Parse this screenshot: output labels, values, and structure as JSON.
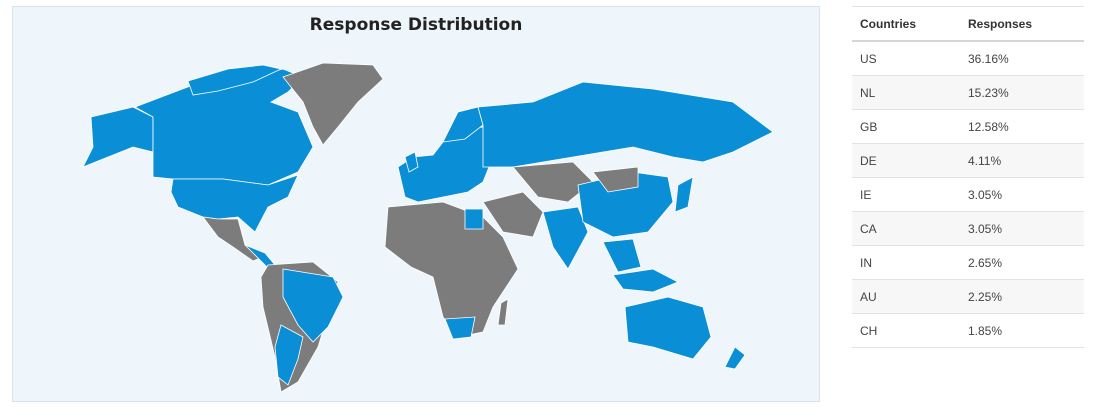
{
  "map": {
    "title": "Response Distribution",
    "colors": {
      "responding": "#0a8fd6",
      "no_responses": "#7c7c7c",
      "background": "#eef6fb"
    }
  },
  "table": {
    "headers": {
      "country": "Countries",
      "responses": "Responses"
    },
    "rows": [
      {
        "country": "US",
        "responses": "36.16%"
      },
      {
        "country": "NL",
        "responses": "15.23%"
      },
      {
        "country": "GB",
        "responses": "12.58%"
      },
      {
        "country": "DE",
        "responses": "4.11%"
      },
      {
        "country": "IE",
        "responses": "3.05%"
      },
      {
        "country": "CA",
        "responses": "3.05%"
      },
      {
        "country": "IN",
        "responses": "2.65%"
      },
      {
        "country": "AU",
        "responses": "2.25%"
      },
      {
        "country": "CH",
        "responses": "1.85%"
      }
    ]
  }
}
